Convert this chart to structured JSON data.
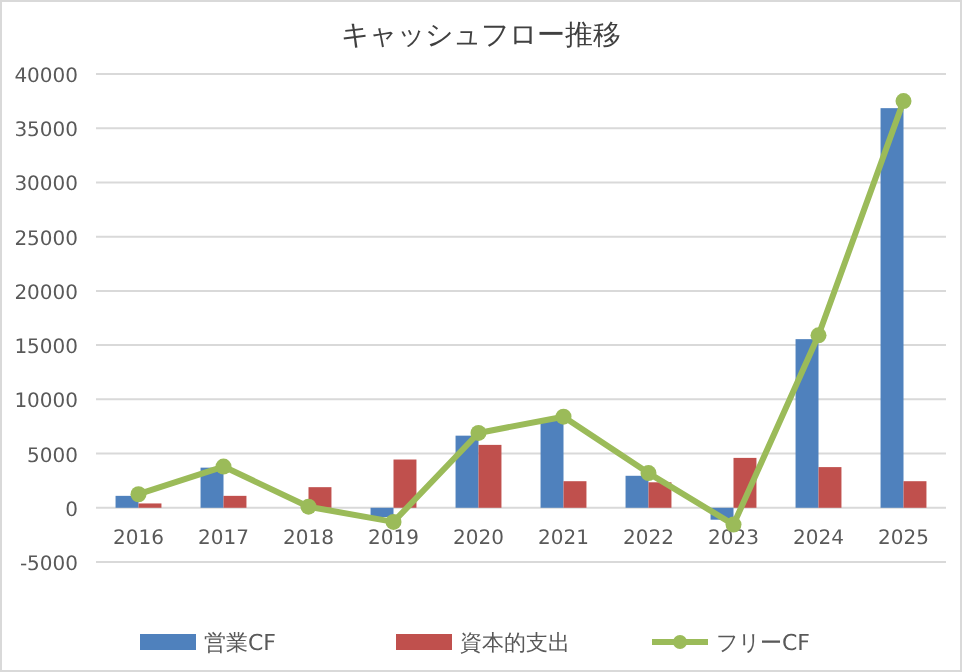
{
  "chart_data": {
    "type": "bar",
    "title": "キャッシュフロー推移",
    "categories": [
      "2016",
      "2017",
      "2018",
      "2019",
      "2020",
      "2021",
      "2022",
      "2023",
      "2024",
      "2025"
    ],
    "series": [
      {
        "name": "営業CF",
        "color": "#4f81bd",
        "values": [
          1100,
          3700,
          0,
          -850,
          6650,
          8150,
          2950,
          -1100,
          15550,
          36850
        ]
      },
      {
        "name": "資本的支出",
        "color": "#c0504d",
        "values": [
          400,
          1100,
          1900,
          4450,
          5800,
          2450,
          2350,
          4600,
          3750,
          2450
        ]
      },
      {
        "name": "フリーCF",
        "type": "line",
        "color": "#9bbb59",
        "marker": "circle",
        "values": [
          1250,
          3800,
          100,
          -1300,
          6900,
          8400,
          3200,
          -1550,
          15900,
          37500
        ]
      }
    ],
    "ylim": [
      -5000,
      40000
    ],
    "yticks": [
      -5000,
      0,
      5000,
      10000,
      15000,
      20000,
      25000,
      30000,
      35000,
      40000
    ],
    "grid": "y",
    "legend": "bottom"
  }
}
